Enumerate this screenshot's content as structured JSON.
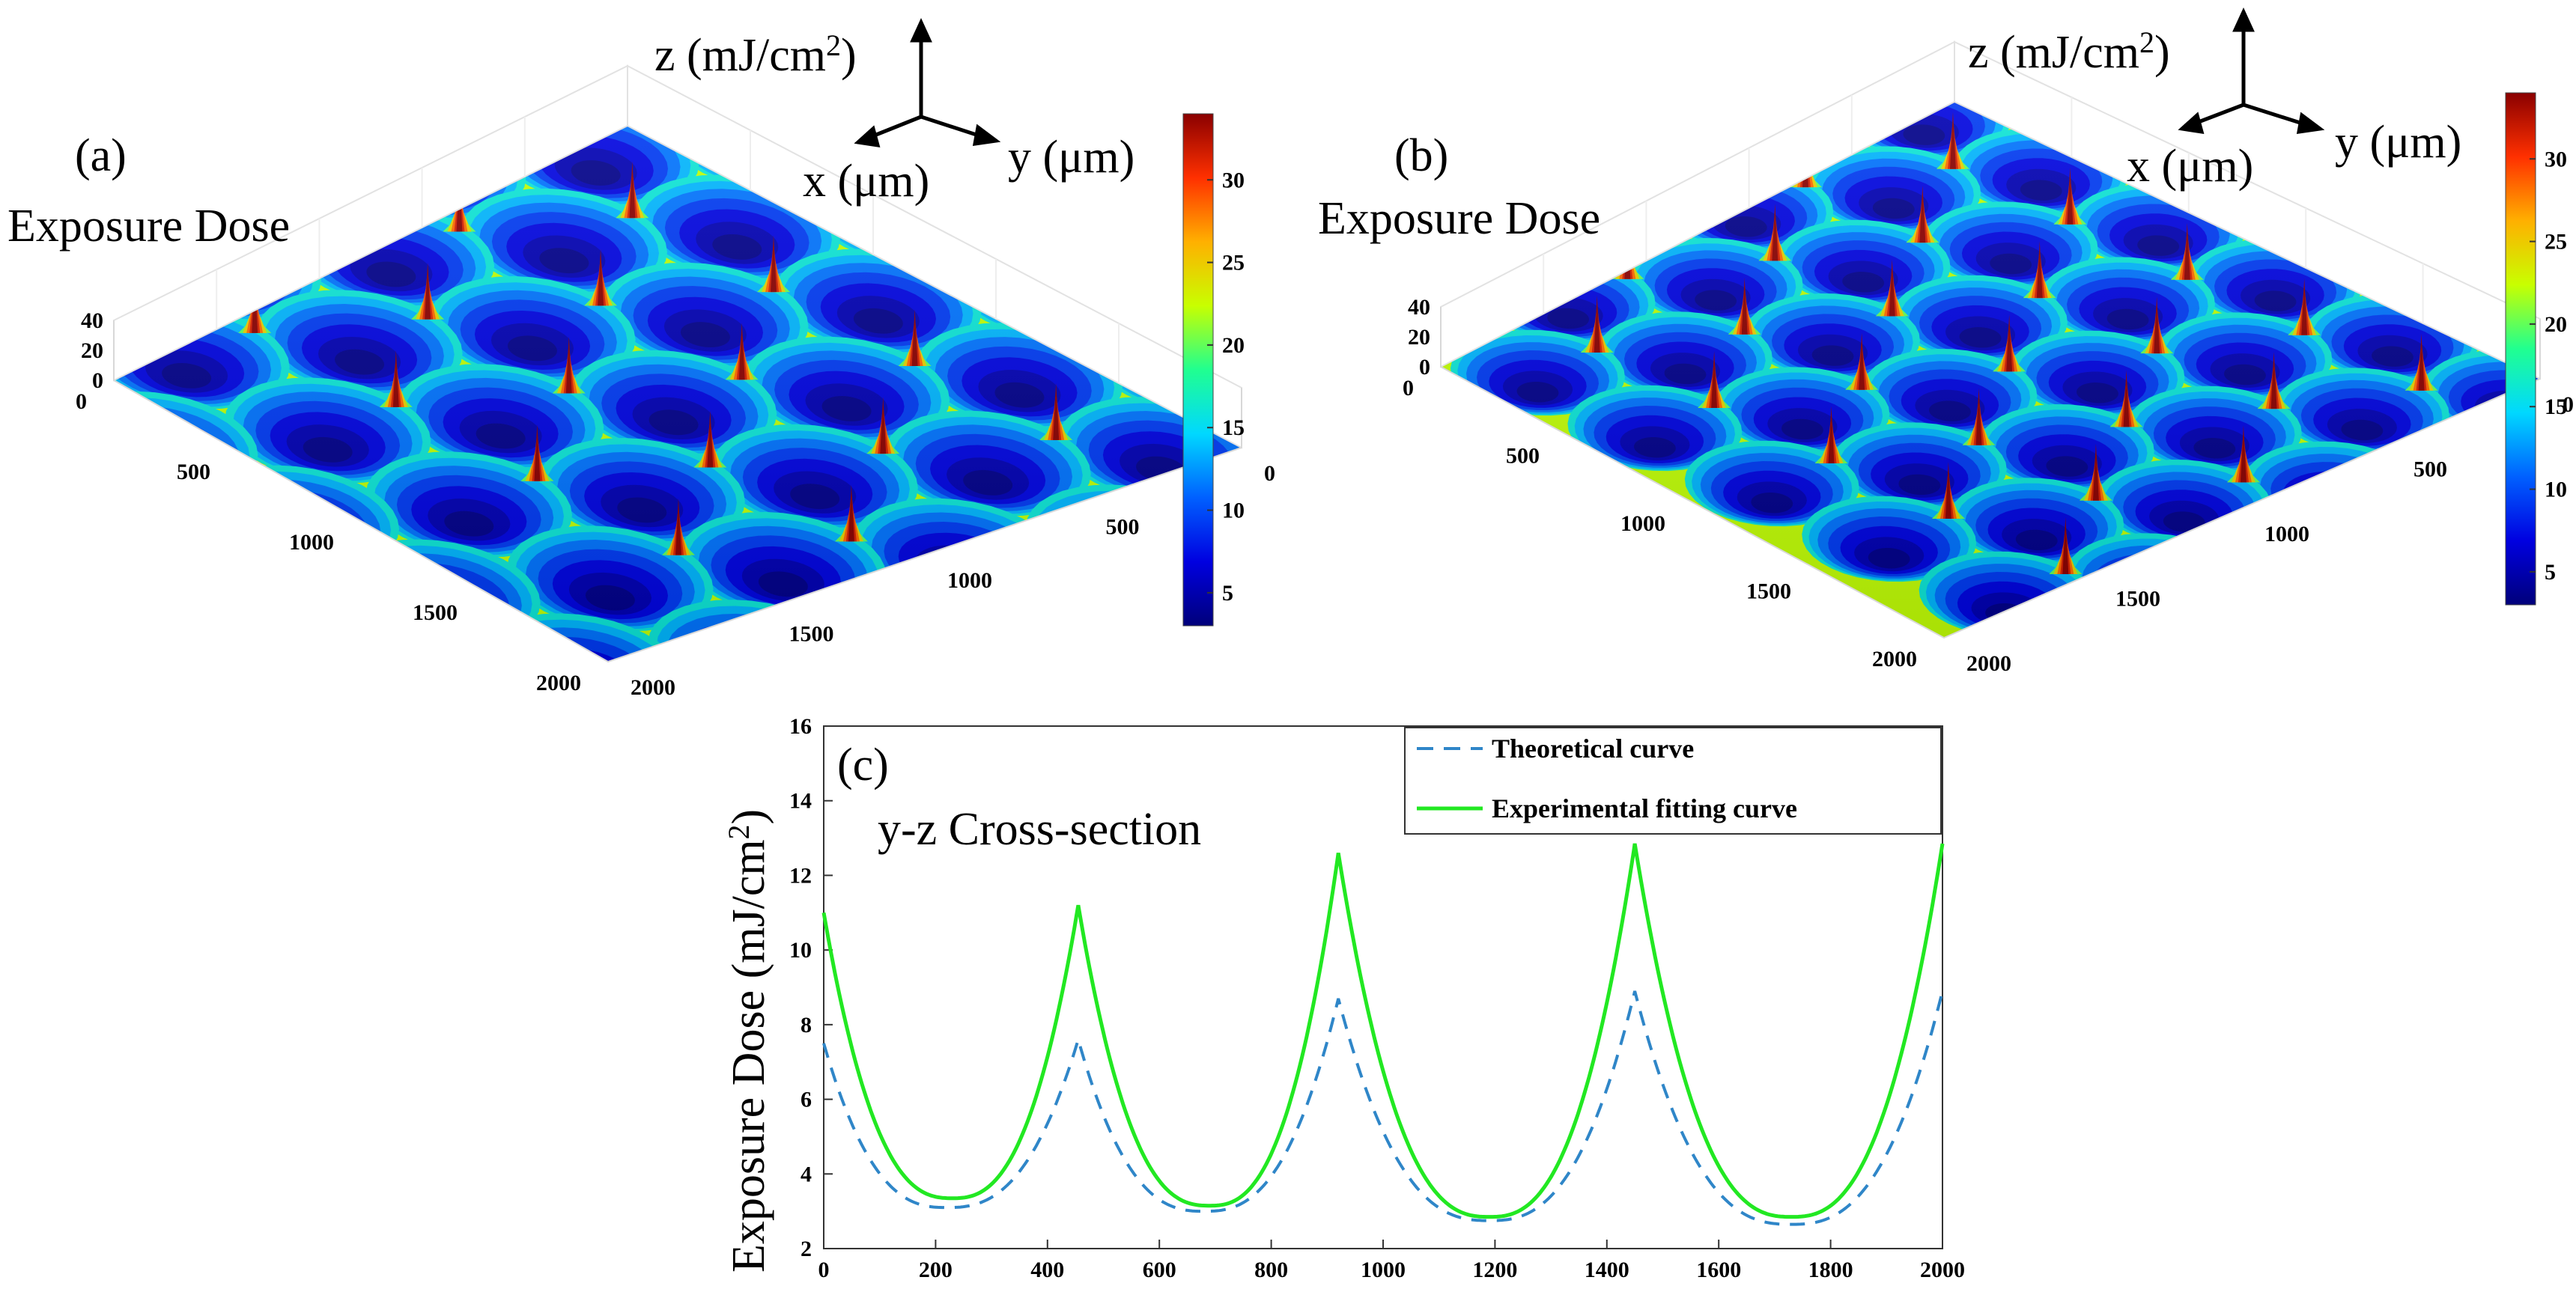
{
  "colors": {
    "theoretical": "#2f86c8",
    "experimental": "#22e822",
    "colormap": [
      "#00007a",
      "#0000e0",
      "#0060ff",
      "#00d8ff",
      "#20ff90",
      "#c8ff00",
      "#ffb000",
      "#ff3000",
      "#8a0000"
    ]
  },
  "chart_data": [
    {
      "id": "a",
      "type": "surface3d",
      "panel_label": "(a)",
      "title": "Exposure Dose",
      "zlabel": "z (mJ/cm²)",
      "zlabel_main": "z (mJ/cm",
      "zlabel_sup": "2",
      "zlabel_close": ")",
      "xlabel": "x (μm)",
      "ylabel": "y (μm)",
      "xticks": [
        "0",
        "500",
        "1000",
        "1500",
        "2000"
      ],
      "yticks": [
        "0",
        "500",
        "1000",
        "1500",
        "2000"
      ],
      "zticks": [
        "0",
        "20",
        "40"
      ],
      "zlim": [
        0,
        40
      ],
      "xlim": [
        0,
        2000
      ],
      "ylim": [
        0,
        2000
      ],
      "colorbar": {
        "ticks": [
          "5",
          "10",
          "15",
          "20",
          "25",
          "30"
        ],
        "values": [
          5,
          10,
          15,
          20,
          25,
          30
        ],
        "range": [
          3,
          34
        ]
      },
      "lattice": "hexagonal",
      "lens_pitch_um": 460
    },
    {
      "id": "b",
      "type": "surface3d",
      "panel_label": "(b)",
      "title": "Exposure Dose",
      "zlabel": "z (mJ/cm²)",
      "zlabel_main": "z (mJ/cm",
      "zlabel_sup": "2",
      "zlabel_close": ")",
      "xlabel": "x (μm)",
      "ylabel": "y (μm)",
      "xticks": [
        "0",
        "500",
        "1000",
        "1500",
        "2000"
      ],
      "yticks": [
        "0",
        "500",
        "1000",
        "1500",
        "2000"
      ],
      "zticks": [
        "0",
        "20",
        "40"
      ],
      "zlim": [
        0,
        40
      ],
      "xlim": [
        0,
        2000
      ],
      "ylim": [
        0,
        2000
      ],
      "colorbar": {
        "ticks": [
          "5",
          "10",
          "15",
          "20",
          "25",
          "30"
        ],
        "values": [
          5,
          10,
          15,
          20,
          25,
          30
        ],
        "range": [
          3,
          34
        ]
      },
      "lattice": "hexagonal",
      "lens_pitch_um": 400
    },
    {
      "id": "c",
      "type": "line",
      "panel_label": "(c)",
      "annotation": "y-z Cross-section",
      "ylabel": "Exposure Dose (mJ/cm²)",
      "ylabel_main": "Exposure Dose (mJ/cm",
      "ylabel_sup": "2",
      "ylabel_close": ")",
      "xlabel": "",
      "xlim": [
        0,
        2000
      ],
      "ylim": [
        2,
        16
      ],
      "xticks": [
        0,
        200,
        400,
        600,
        800,
        1000,
        1200,
        1400,
        1600,
        1800,
        2000
      ],
      "yticks": [
        2,
        4,
        6,
        8,
        10,
        12,
        14,
        16
      ],
      "legend_position": "top-right",
      "series": [
        {
          "name": "Theoretical curve",
          "style": "dashed",
          "color": "#2f86c8",
          "segments": [
            {
              "x0": 0,
              "x1": 455,
              "left": 7.5,
              "right": 7.6,
              "min_x": 220,
              "min_y": 3.1
            },
            {
              "x0": 455,
              "x1": 920,
              "left": 7.6,
              "right": 8.7,
              "min_x": 680,
              "min_y": 3.0
            },
            {
              "x0": 920,
              "x1": 1450,
              "left": 8.7,
              "right": 8.9,
              "min_x": 1190,
              "min_y": 2.75
            },
            {
              "x0": 1450,
              "x1": 2000,
              "left": 8.9,
              "right": 8.9,
              "min_x": 1730,
              "min_y": 2.65
            }
          ]
        },
        {
          "name": "Experimental fitting curve",
          "style": "solid",
          "color": "#22e822",
          "segments": [
            {
              "x0": 0,
              "x1": 455,
              "left": 11.0,
              "right": 11.2,
              "min_x": 230,
              "min_y": 3.35
            },
            {
              "x0": 455,
              "x1": 920,
              "left": 11.2,
              "right": 12.6,
              "min_x": 690,
              "min_y": 3.15
            },
            {
              "x0": 920,
              "x1": 1450,
              "left": 12.6,
              "right": 12.85,
              "min_x": 1190,
              "min_y": 2.85
            },
            {
              "x0": 1450,
              "x1": 2000,
              "left": 12.85,
              "right": 12.85,
              "min_x": 1730,
              "min_y": 2.85
            }
          ]
        }
      ]
    }
  ]
}
